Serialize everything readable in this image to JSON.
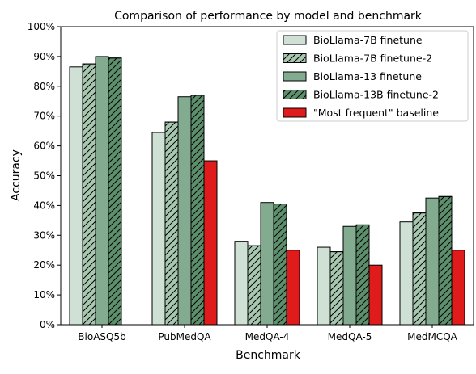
{
  "chart_data": {
    "type": "bar",
    "title": "Comparison of performance by model and benchmark",
    "xlabel": "Benchmark",
    "ylabel": "Accuracy",
    "ylim": [
      0,
      100
    ],
    "y_ticks": [
      "0%",
      "10%",
      "20%",
      "30%",
      "40%",
      "50%",
      "60%",
      "70%",
      "80%",
      "90%",
      "100%"
    ],
    "categories": [
      "BioASQ5b",
      "PubMedQA",
      "MedQA-4",
      "MedQA-5",
      "MedMCQA"
    ],
    "series": [
      {
        "name": "BioLlama-7B finetune",
        "color": "#cfe0d4",
        "hatch": false,
        "values": [
          86.5,
          64.5,
          28.0,
          26.0,
          34.5
        ]
      },
      {
        "name": "BioLlama-7B finetune-2",
        "color": "#a8c7b0",
        "hatch": true,
        "values": [
          87.5,
          68.0,
          26.5,
          24.5,
          37.5
        ]
      },
      {
        "name": "BioLlama-13 finetune",
        "color": "#82ab90",
        "hatch": false,
        "values": [
          90.0,
          76.5,
          41.0,
          33.0,
          42.5
        ]
      },
      {
        "name": "BioLlama-13B finetune-2",
        "color": "#5c8f6c",
        "hatch": true,
        "values": [
          89.5,
          77.0,
          40.5,
          33.5,
          43.0
        ]
      },
      {
        "name": "\"Most frequent\" baseline",
        "color": "#e01b1b",
        "hatch": false,
        "values": [
          0,
          55.0,
          25.0,
          20.0,
          25.0
        ]
      }
    ],
    "grid": false,
    "legend_position": "top-right"
  }
}
